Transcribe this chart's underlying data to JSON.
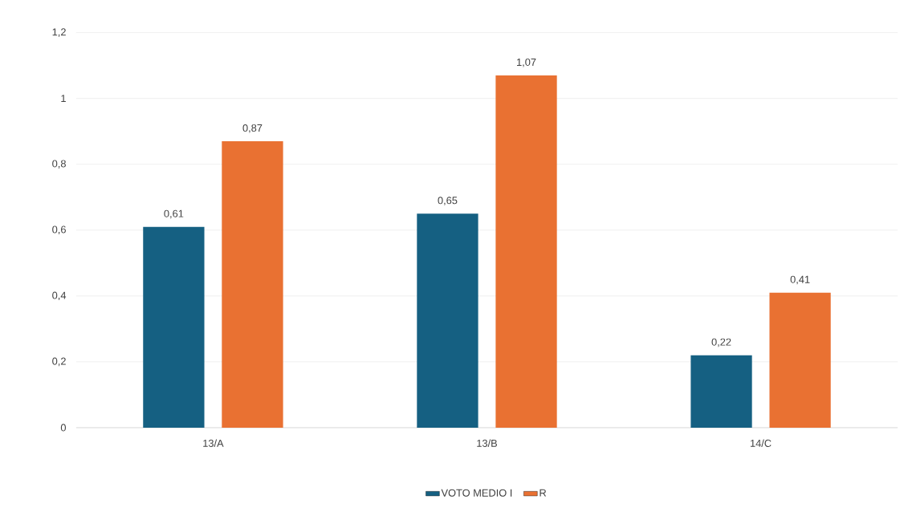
{
  "chart_data": {
    "type": "bar",
    "categories": [
      "13/A",
      "13/B",
      "14/C"
    ],
    "series": [
      {
        "name": "VOTO MEDIO I",
        "color": "#156082",
        "values": [
          0.61,
          0.65,
          0.22
        ],
        "value_labels": [
          "0,61",
          "0,65",
          "0,22"
        ]
      },
      {
        "name": "R",
        "color": "#e97132",
        "values": [
          0.87,
          1.07,
          0.41
        ],
        "value_labels": [
          "0,87",
          "1,07",
          "0,41"
        ]
      }
    ],
    "ylim": [
      0,
      1.2
    ],
    "yticks": [
      0,
      {
        "value": 0.2,
        "label": "0,2"
      },
      {
        "value": 0.4,
        "label": "0,4"
      },
      {
        "value": 0.6,
        "label": "0,6"
      },
      {
        "value": 0.8,
        "label": "0,8"
      },
      1,
      {
        "value": 1.2,
        "label": "1,2"
      }
    ],
    "grid": "y",
    "legend": "bottom"
  }
}
